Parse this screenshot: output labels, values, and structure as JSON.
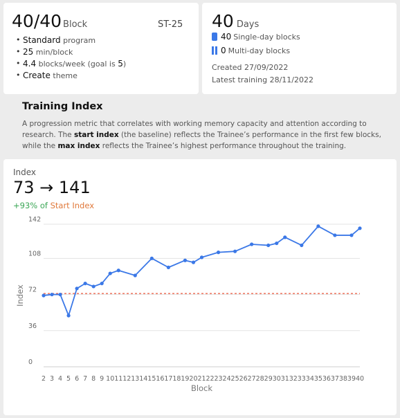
{
  "summary": {
    "blocks_done": "40",
    "blocks_total": "/40",
    "blocks_unit": "Block",
    "code": "ST-25",
    "program_value": "Standard",
    "program_label": "program",
    "minutes_value": "25",
    "minutes_label": "min/block",
    "rate_value": "4.4",
    "rate_label_pre": "blocks/week (goal is",
    "rate_goal": "5",
    "rate_label_post": ")",
    "theme_value": "Create",
    "theme_label": "theme"
  },
  "days": {
    "count": "40",
    "unit": "Days",
    "single_count": "40",
    "single_label": "Single-day blocks",
    "multi_count": "0",
    "multi_label": "Multi-day blocks",
    "created": "Created 27/09/2022",
    "latest": "Latest training 28/11/2022"
  },
  "training_index": {
    "title": "Training Index",
    "desc_1": "A progression metric that correlates with working memory capacity and attention according to research. The ",
    "desc_b1": "start index",
    "desc_2": " (the baseline) reflects the Trainee’s performance in the first few blocks, while the ",
    "desc_b2": "max index",
    "desc_3": " reflects the Trainee’s highest performance throughout the training."
  },
  "index_card": {
    "label": "Index",
    "range": "73 → 141",
    "delta_pct": "+93% of",
    "delta_ref": "Start Index"
  },
  "colors": {
    "line": "#3b78e7",
    "baseline": "#e8553a",
    "grid": "#e3e3e3",
    "positive": "#3aa655",
    "reference": "#e0783a"
  },
  "chart_data": {
    "type": "line",
    "xlabel": "Block",
    "ylabel": "Index",
    "ylim": [
      0,
      142
    ],
    "yticks": [
      0,
      36,
      72,
      108,
      142
    ],
    "baseline": 73,
    "grid": true,
    "x": [
      2,
      3,
      4,
      5,
      6,
      7,
      8,
      9,
      10,
      11,
      12,
      13,
      14,
      15,
      16,
      17,
      18,
      19,
      20,
      21,
      22,
      23,
      24,
      25,
      26,
      27,
      28,
      29,
      30,
      31,
      32,
      33,
      34,
      35,
      36,
      37,
      38,
      39,
      40
    ],
    "points": [
      {
        "x": 2,
        "y": 71
      },
      {
        "x": 3,
        "y": 72
      },
      {
        "x": 4,
        "y": 72
      },
      {
        "x": 5,
        "y": 51
      },
      {
        "x": 6,
        "y": 78
      },
      {
        "x": 7,
        "y": 83
      },
      {
        "x": 8,
        "y": 80
      },
      {
        "x": 9,
        "y": 83
      },
      {
        "x": 10,
        "y": 93
      },
      {
        "x": 11,
        "y": 96
      },
      {
        "x": 13,
        "y": 91
      },
      {
        "x": 15,
        "y": 108
      },
      {
        "x": 17,
        "y": 99
      },
      {
        "x": 19,
        "y": 106
      },
      {
        "x": 20,
        "y": 104
      },
      {
        "x": 21,
        "y": 109
      },
      {
        "x": 23,
        "y": 114
      },
      {
        "x": 25,
        "y": 115
      },
      {
        "x": 27,
        "y": 122
      },
      {
        "x": 29,
        "y": 121
      },
      {
        "x": 30,
        "y": 123
      },
      {
        "x": 31,
        "y": 129
      },
      {
        "x": 33,
        "y": 121
      },
      {
        "x": 35,
        "y": 140
      },
      {
        "x": 37,
        "y": 131
      },
      {
        "x": 39,
        "y": 131
      },
      {
        "x": 40,
        "y": 138
      }
    ]
  }
}
